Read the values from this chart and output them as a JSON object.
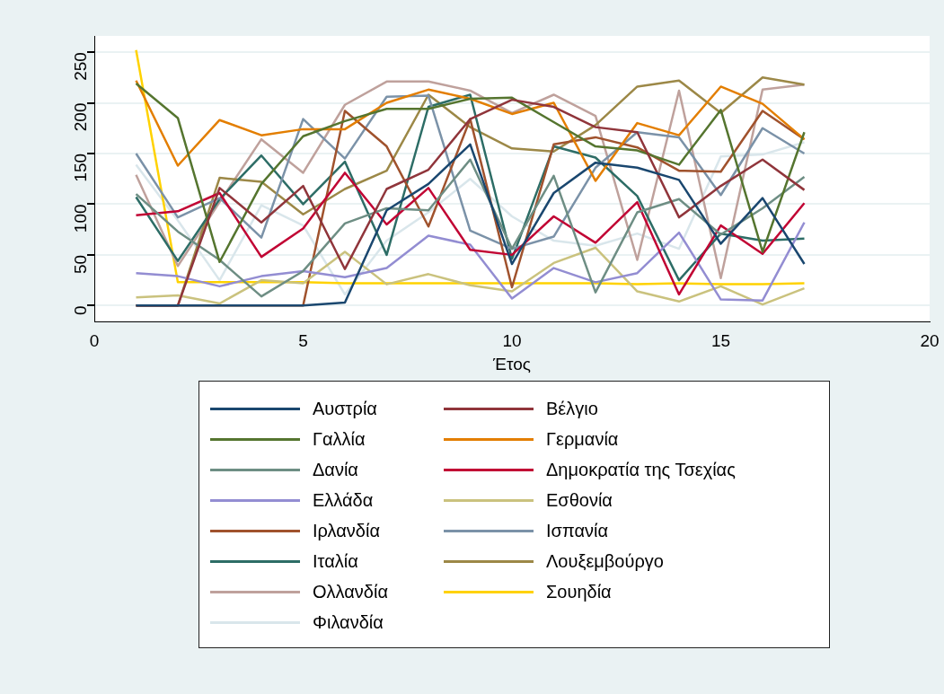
{
  "chart_data": {
    "type": "line",
    "xlabel": "Έτος",
    "x": [
      1,
      2,
      3,
      4,
      5,
      6,
      7,
      8,
      9,
      10,
      11,
      12,
      13,
      14,
      15,
      16,
      17
    ],
    "xlim": [
      0,
      20
    ],
    "xticks": [
      0,
      5,
      10,
      15,
      20
    ],
    "ylim": [
      -16,
      266
    ],
    "yticks": [
      0,
      50,
      100,
      150,
      200,
      250
    ],
    "grid": "y",
    "legend": "bottom",
    "series": [
      {
        "name": "Αυστρία",
        "color": "#1a476f",
        "values": [
          0,
          0,
          0,
          0,
          0,
          3,
          94,
          120,
          159,
          41,
          111,
          141,
          136,
          124,
          61,
          106,
          41
        ]
      },
      {
        "name": "Βέλγιο",
        "color": "#90353b",
        "values": [
          0,
          0,
          116,
          82,
          118,
          36,
          115,
          134,
          184,
          203,
          196,
          176,
          171,
          87,
          118,
          144,
          114
        ]
      },
      {
        "name": "Γαλλία",
        "color": "#55752f",
        "values": [
          219,
          185,
          43,
          120,
          167,
          182,
          194,
          194,
          204,
          205,
          181,
          157,
          153,
          139,
          193,
          53,
          171
        ]
      },
      {
        "name": "Γερμανία",
        "color": "#e37e00",
        "values": [
          222,
          138,
          183,
          168,
          174,
          174,
          200,
          213,
          204,
          189,
          200,
          123,
          180,
          168,
          216,
          199,
          164
        ]
      },
      {
        "name": "Δανία",
        "color": "#6e8e84",
        "values": [
          110,
          73,
          45,
          9,
          34,
          81,
          96,
          94,
          144,
          56,
          128,
          13,
          92,
          105,
          70,
          96,
          127
        ]
      },
      {
        "name": "Δημοκρατία της Τσεχίας",
        "color": "#c10534",
        "values": [
          89,
          93,
          111,
          48,
          76,
          131,
          80,
          116,
          55,
          50,
          88,
          62,
          102,
          11,
          79,
          51,
          101
        ]
      },
      {
        "name": "Ελλάδα",
        "color": "#938dd2",
        "values": [
          32,
          29,
          19,
          29,
          34,
          28,
          37,
          69,
          60,
          7,
          37,
          23,
          32,
          72,
          6,
          5,
          82
        ]
      },
      {
        "name": "Εσθονία",
        "color": "#cac27e",
        "values": [
          8,
          10,
          2,
          25,
          22,
          53,
          21,
          31,
          20,
          14,
          42,
          57,
          14,
          4,
          19,
          1,
          17
        ]
      },
      {
        "name": "Ιρλανδία",
        "color": "#a0522d",
        "values": [
          0,
          0,
          0,
          0,
          0,
          192,
          157,
          78,
          184,
          18,
          159,
          166,
          156,
          133,
          132,
          192,
          164
        ]
      },
      {
        "name": "Ισπανία",
        "color": "#7b92a8",
        "values": [
          150,
          87,
          106,
          67,
          184,
          145,
          206,
          207,
          74,
          56,
          68,
          136,
          171,
          166,
          109,
          175,
          150
        ]
      },
      {
        "name": "Ιταλία",
        "color": "#2d6d66",
        "values": [
          107,
          44,
          105,
          148,
          100,
          142,
          50,
          196,
          208,
          46,
          157,
          146,
          108,
          25,
          71,
          64,
          66
        ]
      },
      {
        "name": "Λουξεμβούργο",
        "color": "#9c8847",
        "values": [
          0,
          0,
          126,
          122,
          90,
          115,
          133,
          208,
          176,
          155,
          152,
          178,
          216,
          222,
          190,
          225,
          218
        ]
      },
      {
        "name": "Ολλανδία",
        "color": "#bfa19c",
        "values": [
          129,
          39,
          102,
          164,
          131,
          198,
          221,
          221,
          212,
          190,
          208,
          187,
          45,
          212,
          27,
          213,
          218
        ]
      },
      {
        "name": "Σουηδία",
        "color": "#ffd200",
        "values": [
          252,
          23,
          23,
          23,
          23,
          22,
          22,
          22,
          22,
          22,
          22,
          22,
          21,
          22,
          21,
          21,
          22
        ]
      },
      {
        "name": "Φιλανδία",
        "color": "#d9e6eb",
        "values": [
          139,
          84,
          25,
          99,
          79,
          11,
          64,
          92,
          125,
          88,
          64,
          59,
          71,
          56,
          147,
          149,
          161
        ]
      }
    ]
  }
}
